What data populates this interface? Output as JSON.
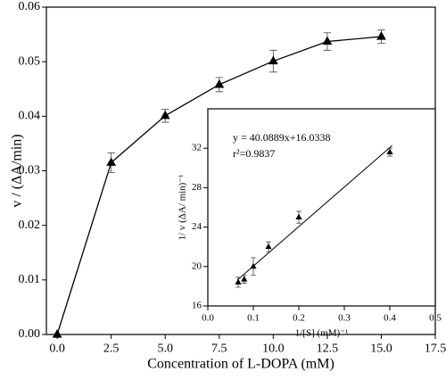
{
  "chart_data": [
    {
      "type": "line",
      "xlabel": "Concentration of L-DOPA (mM)",
      "ylabel": "v / (ΔA/min)",
      "x": [
        0,
        2.5,
        5,
        7.5,
        10,
        12.5,
        15
      ],
      "values": [
        0,
        0.0315,
        0.0401,
        0.0458,
        0.0501,
        0.0537,
        0.0546
      ],
      "errors": [
        0,
        0.0018,
        0.0012,
        0.0013,
        0.002,
        0.0016,
        0.0012
      ],
      "color": "#000000",
      "xlim": [
        -0.5,
        17.5
      ],
      "xticks": [
        {
          "value": 0,
          "label": "0.0"
        },
        2.5,
        {
          "value": 5,
          "label": "5.0"
        },
        7.5,
        {
          "value": 10,
          "label": "10.0"
        },
        12.5,
        {
          "value": 15,
          "label": "15.0"
        },
        17.5
      ],
      "ylim": [
        0,
        0.06
      ],
      "yticks": [
        {
          "value": 0,
          "label": "0.00"
        },
        {
          "value": 0.01,
          "label": "0.01"
        },
        {
          "value": 0.02,
          "label": "0.02"
        },
        {
          "value": 0.03,
          "label": "0.03"
        },
        {
          "value": 0.04,
          "label": "0.04"
        },
        {
          "value": 0.05,
          "label": "0.05"
        },
        {
          "value": 0.06,
          "label": "0.06"
        }
      ]
    },
    {
      "type": "scatter",
      "xlabel": "1/[S] (mM)⁻¹",
      "ylabel": "1/ v (ΔA/ min)⁻¹",
      "annotations": [
        "y = 40.0889x+16.0338",
        "r²=0.9837"
      ],
      "x": [
        0.0667,
        0.08,
        0.1,
        0.1333,
        0.2,
        0.4
      ],
      "values": [
        18.4,
        18.7,
        20.0,
        22.0,
        25.0,
        31.6
      ],
      "errors": [
        0.5,
        0.4,
        0.9,
        0.5,
        0.6,
        0.4
      ],
      "fit": {
        "x": [
          0.065,
          0.405
        ],
        "values": [
          18.64,
          32.27
        ]
      },
      "color": "#000000",
      "xlim": [
        0,
        0.5
      ],
      "xticks": [
        {
          "value": 0,
          "label": "0.0"
        },
        0.1,
        0.2,
        0.3,
        0.4,
        {
          "value": 0.5,
          "label": "0.5"
        }
      ],
      "ylim": [
        16,
        36
      ],
      "yticks": [
        16,
        20,
        24,
        28,
        32
      ]
    }
  ]
}
